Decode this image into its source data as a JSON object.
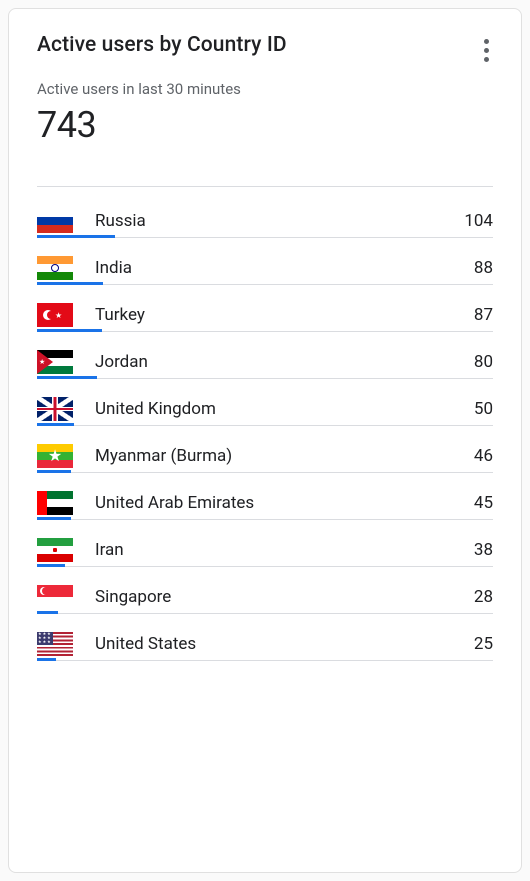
{
  "card": {
    "title": "Active users by Country ID",
    "subtitle": "Active users in last 30 minutes",
    "total": "743"
  },
  "progress": {
    "color": "#1a73e8",
    "max_value": 104,
    "max_percent_of_card": 17
  },
  "colors": {
    "text_primary": "#202124",
    "text_secondary": "#5f6368",
    "divider": "#dadce0",
    "card_bg": "#ffffff",
    "card_border": "#e0e0e0"
  },
  "countries": [
    {
      "code": "ru",
      "name": "Russia",
      "value": 104
    },
    {
      "code": "in",
      "name": "India",
      "value": 88
    },
    {
      "code": "tr",
      "name": "Turkey",
      "value": 87
    },
    {
      "code": "jo",
      "name": "Jordan",
      "value": 80
    },
    {
      "code": "gb",
      "name": "United Kingdom",
      "value": 50
    },
    {
      "code": "mm",
      "name": "Myanmar (Burma)",
      "value": 46
    },
    {
      "code": "ae",
      "name": "United Arab Emirates",
      "value": 45
    },
    {
      "code": "ir",
      "name": "Iran",
      "value": 38
    },
    {
      "code": "sg",
      "name": "Singapore",
      "value": 28
    },
    {
      "code": "us",
      "name": "United States",
      "value": 25
    }
  ]
}
